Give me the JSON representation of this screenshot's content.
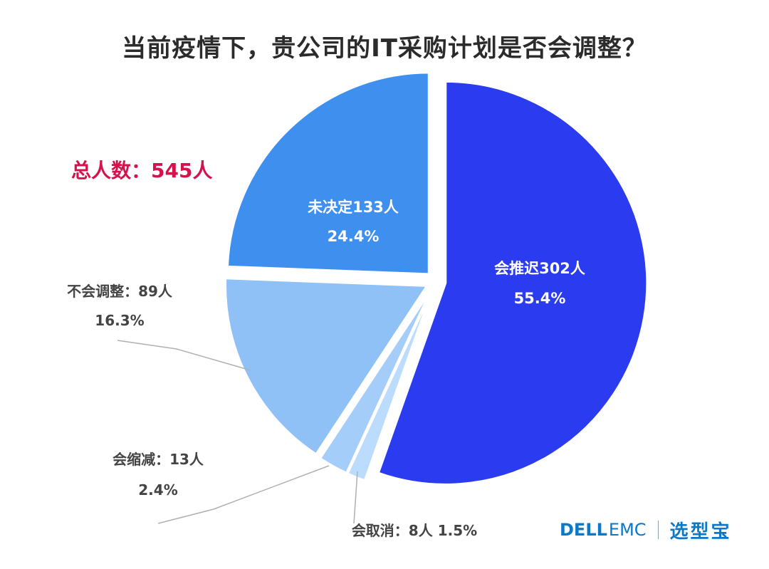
{
  "title": "当前疫情下，贵公司的IT采购计划是否会调整？",
  "total_label": "总人数：545人",
  "chart_data": {
    "type": "pie",
    "title": "当前疫情下，贵公司的IT采购计划是否会调整？",
    "total": 545,
    "slices": [
      {
        "name": "会推迟",
        "count": 302,
        "percent": 55.4,
        "label": "会推迟302人",
        "pct_label": "55.4%",
        "color": "#2b3bef",
        "label_pos": "inside"
      },
      {
        "name": "会取消",
        "count": 8,
        "percent": 1.5,
        "label": "会取消：8人 1.5%",
        "color": "#bcdcfd",
        "label_pos": "outside"
      },
      {
        "name": "会缩减",
        "count": 13,
        "percent": 2.4,
        "label": "会缩减：13人",
        "pct_label": "2.4%",
        "color": "#a5cdf9",
        "label_pos": "outside"
      },
      {
        "name": "不会调整",
        "count": 89,
        "percent": 16.3,
        "label": "不会调整：89人",
        "pct_label": "16.3%",
        "color": "#8fc0f6",
        "label_pos": "outside"
      },
      {
        "name": "未决定",
        "count": 133,
        "percent": 24.4,
        "label": "未决定133人",
        "pct_label": "24.4%",
        "color": "#3e8fee",
        "label_pos": "inside"
      }
    ],
    "start_angle_deg": 0,
    "direction": "clockwise",
    "exploded": true
  },
  "footer": {
    "brand_dell": "DELL",
    "brand_emc": "EMC",
    "partner": "选型宝",
    "brand_color": "#0b78c8"
  }
}
